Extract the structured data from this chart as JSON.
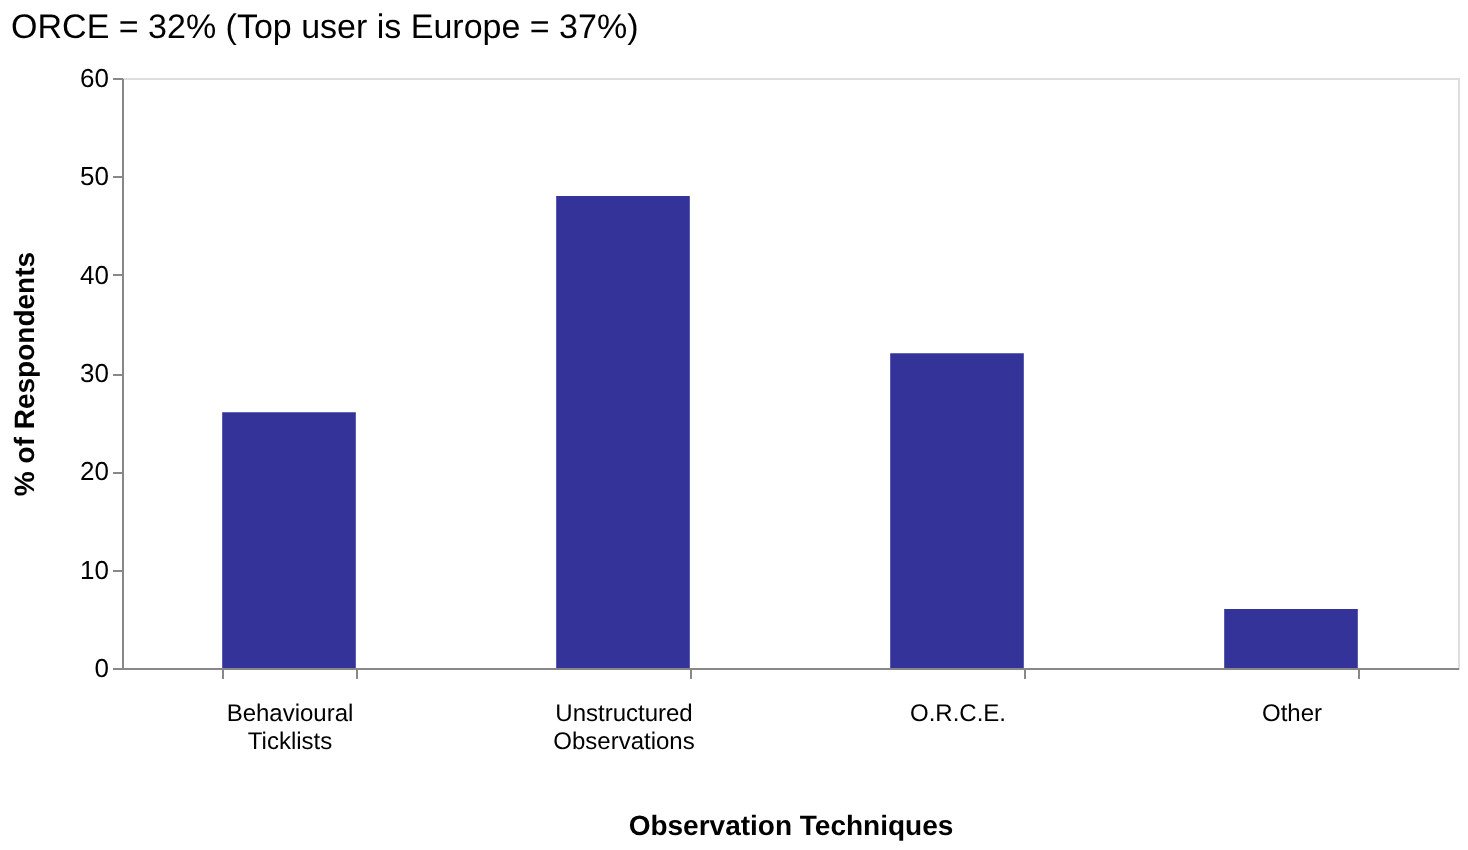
{
  "chart_data": {
    "type": "bar",
    "title": "ORCE = 32% (Top user is Europe = 37%)",
    "xlabel": "Observation Techniques",
    "ylabel": "% of Respondents",
    "categories": [
      "Behavioural\nTicklists",
      "Unstructured\nObservations",
      "O.R.C.E.",
      "Other"
    ],
    "values": [
      26,
      48,
      32,
      6
    ],
    "color": "#333399",
    "ylim": [
      0,
      60
    ],
    "yticks": [
      0,
      10,
      20,
      30,
      40,
      50,
      60
    ],
    "grid": false
  }
}
